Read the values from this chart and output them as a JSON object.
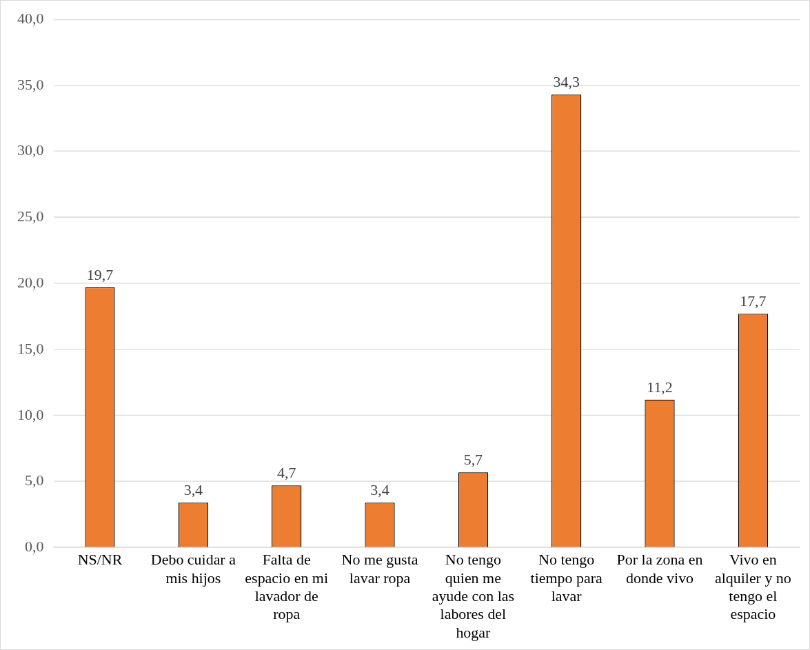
{
  "chart_data": {
    "type": "bar",
    "categories": [
      "NS/NR",
      "Debo cuidar a mis hijos",
      "Falta de espacio en mi lavador de ropa",
      "No me gusta lavar ropa",
      "No tengo quien me ayude con las labores del hogar",
      "No tengo tiempo para lavar",
      "Por la zona en donde vivo",
      "Vivo en alquiler y no tengo el espacio"
    ],
    "values": [
      19.7,
      3.4,
      4.7,
      3.4,
      5.7,
      34.3,
      11.2,
      17.7
    ],
    "value_labels": [
      "19,7",
      "3,4",
      "4,7",
      "3,4",
      "5,7",
      "34,3",
      "11,2",
      "17,7"
    ],
    "color": "#ed7d31",
    "ylim": [
      0,
      40
    ],
    "yticks": [
      {
        "value": 0,
        "label": "0,0"
      },
      {
        "value": 5,
        "label": "5,0"
      },
      {
        "value": 10,
        "label": "10,0"
      },
      {
        "value": 15,
        "label": "15,0"
      },
      {
        "value": 20,
        "label": "20,0"
      },
      {
        "value": 25,
        "label": "25,0"
      },
      {
        "value": 30,
        "label": "30,0"
      },
      {
        "value": 35,
        "label": "35,0"
      },
      {
        "value": 40,
        "label": "40,0"
      }
    ],
    "grid": "y",
    "legend": false
  }
}
